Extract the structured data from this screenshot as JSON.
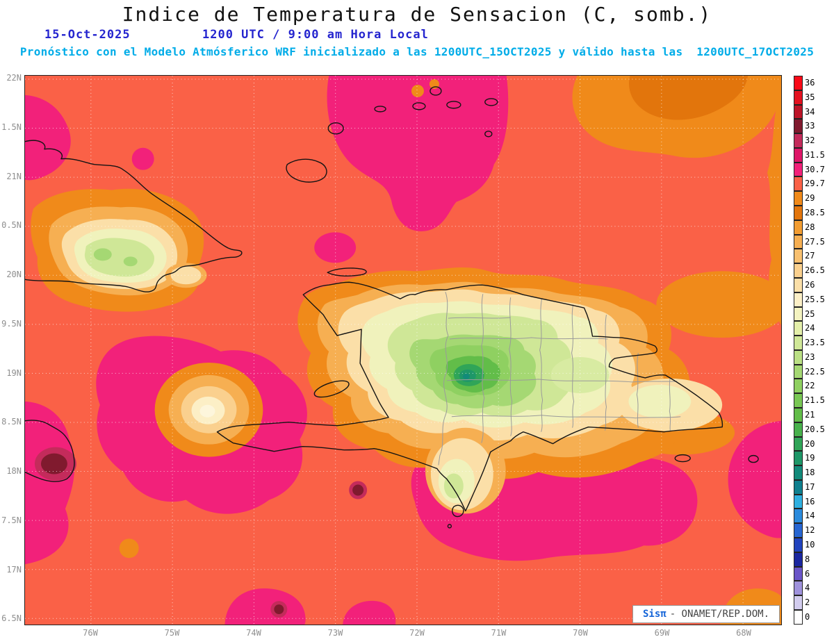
{
  "header": {
    "title": "Indice de Temperatura de Sensacion (C, somb.)",
    "date_label": "15-Oct-2025",
    "time_label": "1200 UTC / 9:00 am Hora Local",
    "forecast_line": "Pronóstico con el Modelo Atmósferico WRF inicializado a las 1200UTC_15OCT2025 y válido hasta las  1200UTC_17OCT2025"
  },
  "axes": {
    "lat_labels": [
      "22N",
      "1.5N",
      "21N",
      "0.5N",
      "20N",
      "9.5N",
      "19N",
      "8.5N",
      "18N",
      "7.5N",
      "17N",
      "6.5N"
    ],
    "lon_labels": [
      "76W",
      "75W",
      "74W",
      "73W",
      "72W",
      "71W",
      "70W",
      "69W",
      "68W"
    ]
  },
  "colorbar": {
    "entries": [
      {
        "label": "36",
        "color": "#F90A18"
      },
      {
        "label": "35",
        "color": "#E41220"
      },
      {
        "label": "34",
        "color": "#BC1428"
      },
      {
        "label": "33",
        "color": "#801A2E"
      },
      {
        "label": "32",
        "color": "#C42B5B"
      },
      {
        "label": "31.5",
        "color": "#DE1668"
      },
      {
        "label": "30.7",
        "color": "#F2217A"
      },
      {
        "label": "29.7",
        "color": "#FA6147"
      },
      {
        "label": "29",
        "color": "#F08A1A"
      },
      {
        "label": "28.5",
        "color": "#E2750C"
      },
      {
        "label": "28",
        "color": "#F29D32"
      },
      {
        "label": "27.5",
        "color": "#F6AF52"
      },
      {
        "label": "27",
        "color": "#F8C070"
      },
      {
        "label": "26.5",
        "color": "#FAD08E"
      },
      {
        "label": "26",
        "color": "#FBDFA8"
      },
      {
        "label": "25.5",
        "color": "#FCEFC6"
      },
      {
        "label": "25",
        "color": "#F4F3C0"
      },
      {
        "label": "24",
        "color": "#E4EFAA"
      },
      {
        "label": "23.5",
        "color": "#D0E898"
      },
      {
        "label": "23",
        "color": "#BBE085"
      },
      {
        "label": "22.5",
        "color": "#A5D873"
      },
      {
        "label": "22",
        "color": "#8FD061"
      },
      {
        "label": "21.5",
        "color": "#79C754"
      },
      {
        "label": "21",
        "color": "#62BD49"
      },
      {
        "label": "20.5",
        "color": "#48B14C"
      },
      {
        "label": "20",
        "color": "#30A558"
      },
      {
        "label": "19",
        "color": "#1E9768"
      },
      {
        "label": "18",
        "color": "#128A7A"
      },
      {
        "label": "17",
        "color": "#0F808F"
      },
      {
        "label": "16",
        "color": "#2FB0E0"
      },
      {
        "label": "14",
        "color": "#2B8BDC"
      },
      {
        "label": "12",
        "color": "#2766D2"
      },
      {
        "label": "10",
        "color": "#2143BE"
      },
      {
        "label": "8",
        "color": "#1B27A0"
      },
      {
        "label": "6",
        "color": "#6A55C8"
      },
      {
        "label": "4",
        "color": "#9F92DC"
      },
      {
        "label": "2",
        "color": "#D2CCEE"
      },
      {
        "label": "0",
        "color": "#FFFFFF"
      }
    ]
  },
  "branding": {
    "logo": "Sisπ",
    "text": "- ONAMET/REP.DOM."
  }
}
